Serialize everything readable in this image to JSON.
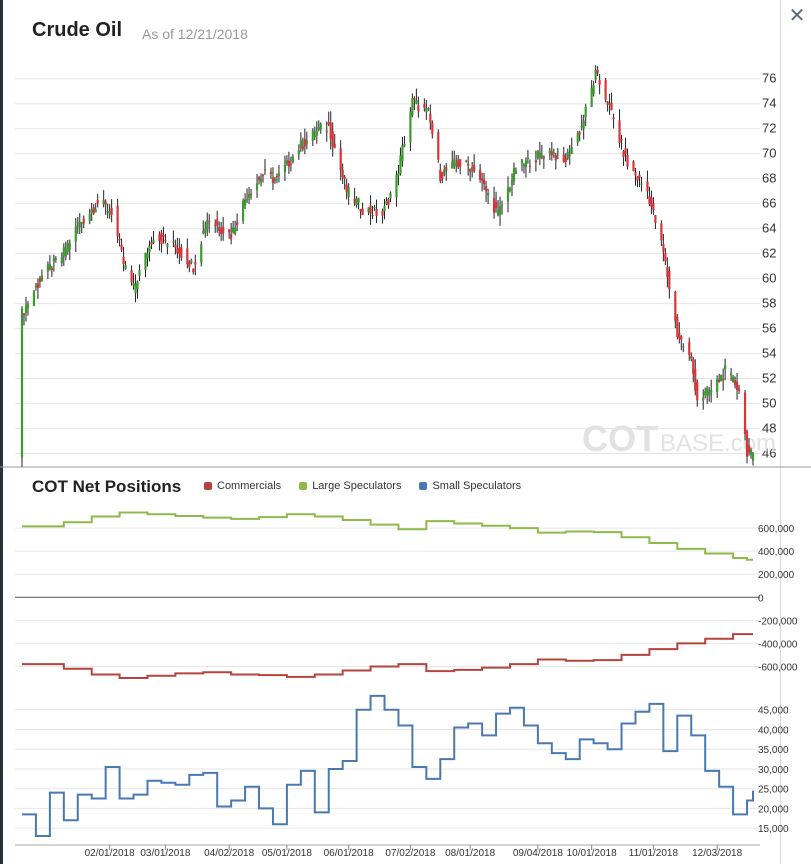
{
  "header": {
    "title": "Crude Oil",
    "as_of": "As of 12/21/2018",
    "close_icon": "close-icon"
  },
  "watermark": {
    "bold": "COT",
    "light": "BASE",
    "suffix": ".com"
  },
  "cot": {
    "title": "COT Net Positions",
    "legend": [
      {
        "label": "Commercials",
        "color": "#b5443f"
      },
      {
        "label": "Large Speculators",
        "color": "#8fb94b"
      },
      {
        "label": "Small Speculators",
        "color": "#4a79b2"
      }
    ]
  },
  "colors": {
    "up": "#3c9a2f",
    "down": "#d9343a",
    "wick": "#222222",
    "grid": "#e6e6e6"
  },
  "chart_data": [
    {
      "type": "candlestick",
      "title": "Crude Oil",
      "ylim": [
        45,
        77.5
      ],
      "y_ticks": [
        "46",
        "48",
        "50",
        "52",
        "54",
        "56",
        "58",
        "60",
        "62",
        "64",
        "66",
        "68",
        "70",
        "72",
        "74",
        "76"
      ],
      "x_range": [
        "2017-12-19",
        "2018-12-21"
      ],
      "close_path": [
        [
          "2017-12-19",
          57.2
        ],
        [
          "2017-12-29",
          60.2
        ],
        [
          "2018-01-08",
          61.8
        ],
        [
          "2018-01-16",
          64.2
        ],
        [
          "2018-01-26",
          66.1
        ],
        [
          "2018-02-02",
          65.4
        ],
        [
          "2018-02-08",
          61.2
        ],
        [
          "2018-02-13",
          59.2
        ],
        [
          "2018-02-23",
          63.5
        ],
        [
          "2018-03-06",
          62.5
        ],
        [
          "2018-03-15",
          61.0
        ],
        [
          "2018-03-22",
          64.8
        ],
        [
          "2018-04-03",
          63.5
        ],
        [
          "2018-04-11",
          66.8
        ],
        [
          "2018-04-19",
          68.3
        ],
        [
          "2018-04-26",
          67.9
        ],
        [
          "2018-05-07",
          70.5
        ],
        [
          "2018-05-17",
          71.9
        ],
        [
          "2018-05-22",
          72.2
        ],
        [
          "2018-05-31",
          67.0
        ],
        [
          "2018-06-08",
          65.6
        ],
        [
          "2018-06-18",
          65.1
        ],
        [
          "2018-06-25",
          68.0
        ],
        [
          "2018-07-03",
          74.2
        ],
        [
          "2018-07-11",
          73.2
        ],
        [
          "2018-07-17",
          68.3
        ],
        [
          "2018-07-25",
          69.2
        ],
        [
          "2018-08-03",
          68.9
        ],
        [
          "2018-08-15",
          65.1
        ],
        [
          "2018-08-24",
          68.8
        ],
        [
          "2018-09-04",
          69.8
        ],
        [
          "2018-09-11",
          70.2
        ],
        [
          "2018-09-17",
          69.2
        ],
        [
          "2018-09-26",
          72.2
        ],
        [
          "2018-10-03",
          76.3
        ],
        [
          "2018-10-09",
          74.2
        ],
        [
          "2018-10-19",
          69.1
        ],
        [
          "2018-10-29",
          67.0
        ],
        [
          "2018-11-06",
          62.1
        ],
        [
          "2018-11-13",
          55.6
        ],
        [
          "2018-11-20",
          53.4
        ],
        [
          "2018-11-23",
          50.4
        ],
        [
          "2018-11-30",
          51.0
        ],
        [
          "2018-12-07",
          52.6
        ],
        [
          "2018-12-14",
          51.2
        ],
        [
          "2018-12-18",
          46.2
        ],
        [
          "2018-12-21",
          45.6
        ]
      ]
    },
    {
      "type": "line",
      "title": "COT Net Positions",
      "x_tick_labels": [
        "02/01/2018",
        "03/01/2018",
        "04/02/2018",
        "05/01/2018",
        "06/01/2018",
        "07/02/2018",
        "08/01/2018",
        "09/04/2018",
        "10/01/2018",
        "11/01/2018",
        "12/03/2018"
      ],
      "y_tick_labels": [
        "600,000",
        "400,000",
        "200,000",
        "0",
        "-200,000",
        "-400,000",
        "-600,000"
      ],
      "ylim": [
        -700000,
        800000
      ],
      "series": [
        {
          "name": "Large Speculators",
          "color": "#8fb94b",
          "points": [
            [
              "2017-12-19",
              615000
            ],
            [
              "2018-01-09",
              650000
            ],
            [
              "2018-01-23",
              700000
            ],
            [
              "2018-02-06",
              735000
            ],
            [
              "2018-02-20",
              720000
            ],
            [
              "2018-03-06",
              705000
            ],
            [
              "2018-03-20",
              690000
            ],
            [
              "2018-04-03",
              680000
            ],
            [
              "2018-04-17",
              695000
            ],
            [
              "2018-05-01",
              720000
            ],
            [
              "2018-05-15",
              700000
            ],
            [
              "2018-05-29",
              670000
            ],
            [
              "2018-06-12",
              630000
            ],
            [
              "2018-06-26",
              590000
            ],
            [
              "2018-07-10",
              660000
            ],
            [
              "2018-07-24",
              640000
            ],
            [
              "2018-08-07",
              620000
            ],
            [
              "2018-08-21",
              600000
            ],
            [
              "2018-09-04",
              560000
            ],
            [
              "2018-09-18",
              570000
            ],
            [
              "2018-10-02",
              565000
            ],
            [
              "2018-10-16",
              520000
            ],
            [
              "2018-10-30",
              470000
            ],
            [
              "2018-11-13",
              420000
            ],
            [
              "2018-11-27",
              380000
            ],
            [
              "2018-12-11",
              340000
            ],
            [
              "2018-12-18",
              325000
            ]
          ]
        },
        {
          "name": "Commercials",
          "color": "#b5443f",
          "points": [
            [
              "2017-12-19",
              -580000
            ],
            [
              "2018-01-09",
              -620000
            ],
            [
              "2018-01-23",
              -670000
            ],
            [
              "2018-02-06",
              -700000
            ],
            [
              "2018-02-20",
              -680000
            ],
            [
              "2018-03-06",
              -660000
            ],
            [
              "2018-03-20",
              -650000
            ],
            [
              "2018-04-03",
              -670000
            ],
            [
              "2018-04-17",
              -675000
            ],
            [
              "2018-05-01",
              -690000
            ],
            [
              "2018-05-15",
              -670000
            ],
            [
              "2018-05-29",
              -635000
            ],
            [
              "2018-06-12",
              -600000
            ],
            [
              "2018-06-26",
              -580000
            ],
            [
              "2018-07-10",
              -640000
            ],
            [
              "2018-07-24",
              -630000
            ],
            [
              "2018-08-07",
              -610000
            ],
            [
              "2018-08-21",
              -580000
            ],
            [
              "2018-09-04",
              -540000
            ],
            [
              "2018-09-18",
              -550000
            ],
            [
              "2018-10-02",
              -545000
            ],
            [
              "2018-10-16",
              -500000
            ],
            [
              "2018-10-30",
              -450000
            ],
            [
              "2018-11-13",
              -400000
            ],
            [
              "2018-11-27",
              -360000
            ],
            [
              "2018-12-11",
              -320000
            ],
            [
              "2018-12-18",
              -320000
            ]
          ]
        }
      ]
    },
    {
      "type": "line",
      "title": "Small Speculators",
      "y_tick_labels": [
        "15,000",
        "20,000",
        "25,000",
        "30,000",
        "35,000",
        "40,000",
        "45,000"
      ],
      "ylim": [
        12000,
        50000
      ],
      "series": [
        {
          "name": "Small Speculators",
          "color": "#4a79b2",
          "points": [
            [
              "2017-12-19",
              18500
            ],
            [
              "2017-12-26",
              13000
            ],
            [
              "2018-01-02",
              24000
            ],
            [
              "2018-01-09",
              17000
            ],
            [
              "2018-01-16",
              23500
            ],
            [
              "2018-01-23",
              22500
            ],
            [
              "2018-01-30",
              30500
            ],
            [
              "2018-02-06",
              22500
            ],
            [
              "2018-02-13",
              23500
            ],
            [
              "2018-02-20",
              27000
            ],
            [
              "2018-02-27",
              26500
            ],
            [
              "2018-03-06",
              26000
            ],
            [
              "2018-03-13",
              28500
            ],
            [
              "2018-03-20",
              29000
            ],
            [
              "2018-03-27",
              20500
            ],
            [
              "2018-04-03",
              22000
            ],
            [
              "2018-04-10",
              25500
            ],
            [
              "2018-04-17",
              20000
            ],
            [
              "2018-04-24",
              16000
            ],
            [
              "2018-05-01",
              26000
            ],
            [
              "2018-05-08",
              29500
            ],
            [
              "2018-05-15",
              19000
            ],
            [
              "2018-05-22",
              30000
            ],
            [
              "2018-05-29",
              32000
            ],
            [
              "2018-06-05",
              45000
            ],
            [
              "2018-06-12",
              48500
            ],
            [
              "2018-06-19",
              45000
            ],
            [
              "2018-06-26",
              41000
            ],
            [
              "2018-07-03",
              30500
            ],
            [
              "2018-07-10",
              27500
            ],
            [
              "2018-07-17",
              32500
            ],
            [
              "2018-07-24",
              40500
            ],
            [
              "2018-07-31",
              41500
            ],
            [
              "2018-08-07",
              38500
            ],
            [
              "2018-08-14",
              44000
            ],
            [
              "2018-08-21",
              45500
            ],
            [
              "2018-08-28",
              41000
            ],
            [
              "2018-09-04",
              36500
            ],
            [
              "2018-09-11",
              34000
            ],
            [
              "2018-09-18",
              32500
            ],
            [
              "2018-09-25",
              37500
            ],
            [
              "2018-10-02",
              36500
            ],
            [
              "2018-10-09",
              35000
            ],
            [
              "2018-10-16",
              41500
            ],
            [
              "2018-10-23",
              44500
            ],
            [
              "2018-10-30",
              46500
            ],
            [
              "2018-11-06",
              34500
            ],
            [
              "2018-11-13",
              43500
            ],
            [
              "2018-11-20",
              38500
            ],
            [
              "2018-11-27",
              29500
            ],
            [
              "2018-12-04",
              25500
            ],
            [
              "2018-12-11",
              18500
            ],
            [
              "2018-12-18",
              22000
            ],
            [
              "2018-12-21",
              24500
            ]
          ]
        }
      ]
    }
  ]
}
